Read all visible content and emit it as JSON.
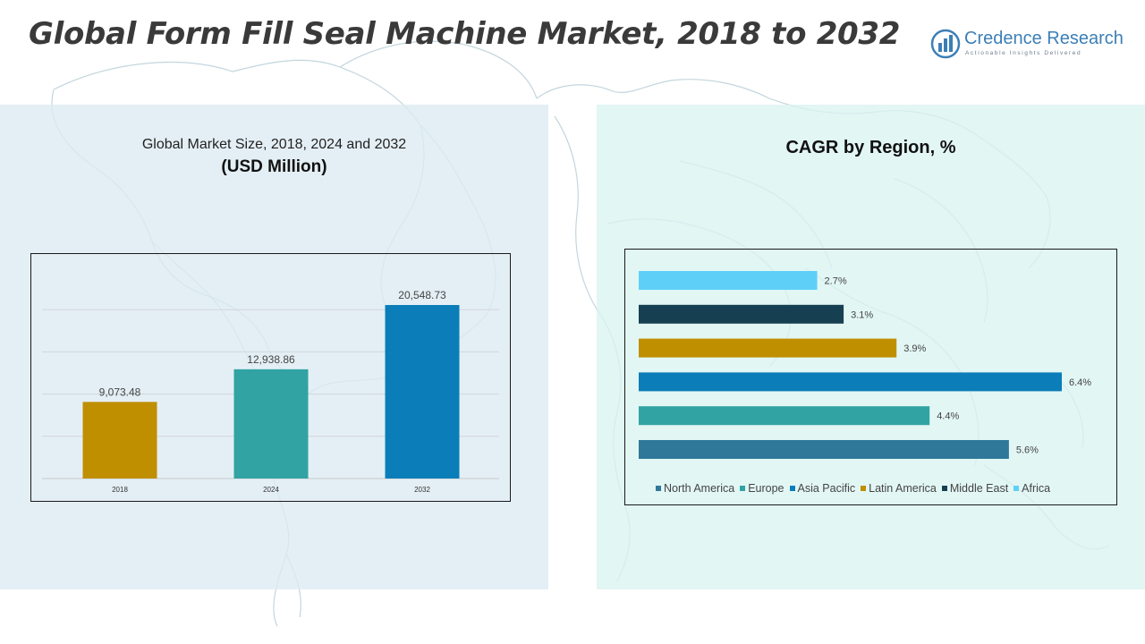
{
  "page": {
    "title": "Global Form Fill Seal Machine Market, 2018 to 2032"
  },
  "brand": {
    "name": "Credence Research",
    "tagline": "Actionable Insights Delivered",
    "color": "#3c7fb6"
  },
  "colors": {
    "panel_left_bg": "#ddebf2",
    "panel_right_bg": "#daf3f1",
    "map_outline": "#b9cfd8"
  },
  "chart_data": [
    {
      "type": "bar",
      "title": "Global Market Size, 2018, 2024 and 2032",
      "subtitle": "(USD Million)",
      "categories": [
        "2018",
        "2024",
        "2032"
      ],
      "values": [
        9073.48,
        12938.86,
        20548.73
      ],
      "value_labels": [
        "9,073.48",
        "12,938.86",
        "20,548.73"
      ],
      "colors": [
        "#bf8f00",
        "#31a3a3",
        "#0b7db8"
      ],
      "ylim": [
        0,
        25000
      ],
      "grid": true,
      "xlabel": "",
      "ylabel": ""
    },
    {
      "type": "bar",
      "orientation": "horizontal",
      "title": "CAGR by Region, %",
      "categories": [
        "Africa",
        "Middle East",
        "Latin America",
        "Asia Pacific",
        "Europe",
        "North America"
      ],
      "values": [
        2.7,
        3.1,
        3.9,
        6.4,
        4.4,
        5.6
      ],
      "value_labels": [
        "2.7%",
        "3.1%",
        "3.9%",
        "6.4%",
        "4.4%",
        "5.6%"
      ],
      "colors": [
        "#5ed0f8",
        "#173f52",
        "#bf8f00",
        "#0b7db8",
        "#31a3a3",
        "#2f7899"
      ],
      "xlim": [
        0,
        6.4
      ],
      "grid": false,
      "legend": {
        "position": "bottom",
        "items": [
          {
            "label": "North America",
            "color": "#2f7899"
          },
          {
            "label": "Europe",
            "color": "#31a3a3"
          },
          {
            "label": "Asia Pacific",
            "color": "#0b7db8"
          },
          {
            "label": "Latin America",
            "color": "#bf8f00"
          },
          {
            "label": "Middle East",
            "color": "#173f52"
          },
          {
            "label": "Africa",
            "color": "#5ed0f8"
          }
        ]
      }
    }
  ]
}
